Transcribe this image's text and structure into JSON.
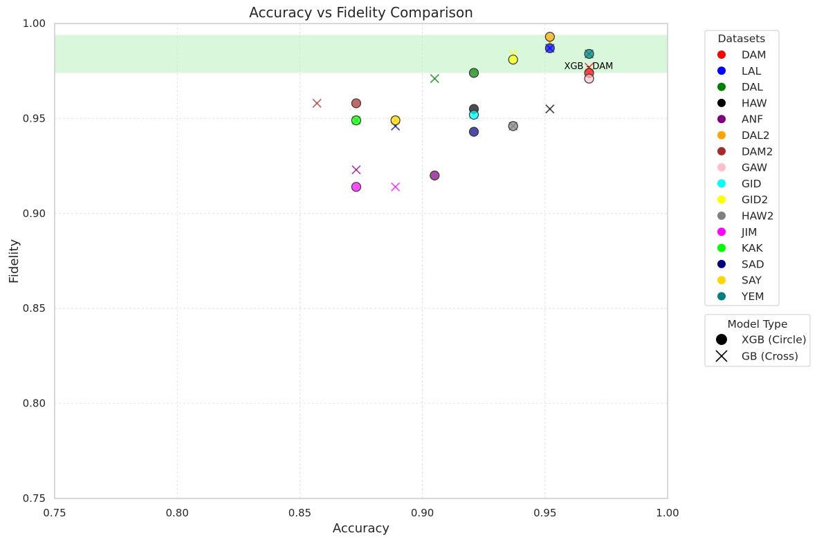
{
  "chart_data": {
    "type": "scatter",
    "title": "Accuracy vs Fidelity Comparison",
    "xlabel": "Accuracy",
    "ylabel": "Fidelity",
    "xlim": [
      0.75,
      1.0
    ],
    "ylim": [
      0.75,
      1.0
    ],
    "xticks": [
      "0.75",
      "0.80",
      "0.85",
      "0.90",
      "0.95",
      "1.00"
    ],
    "yticks": [
      "0.75",
      "0.80",
      "0.85",
      "0.90",
      "0.95",
      "1.00"
    ],
    "grid": true,
    "highlight_band": {
      "y0": 0.974,
      "y1": 0.994,
      "color": "#b9f0bd"
    },
    "annotation": {
      "text": "XGB - DAM",
      "x": 0.968,
      "y": 0.98
    },
    "datasets_legend": {
      "title": "Datasets",
      "placement": "right-top",
      "entries": [
        {
          "name": "DAM",
          "color": "#ff0000"
        },
        {
          "name": "LAL",
          "color": "#0000ff"
        },
        {
          "name": "DAL",
          "color": "#008000"
        },
        {
          "name": "HAW",
          "color": "#000000"
        },
        {
          "name": "ANF",
          "color": "#800080"
        },
        {
          "name": "DAL2",
          "color": "#ffa500"
        },
        {
          "name": "DAM2",
          "color": "#a52a2a"
        },
        {
          "name": "GAW",
          "color": "#ffc0cb"
        },
        {
          "name": "GID",
          "color": "#00ffff"
        },
        {
          "name": "GID2",
          "color": "#ffff00"
        },
        {
          "name": "HAW2",
          "color": "#808080"
        },
        {
          "name": "JIM",
          "color": "#ff00ff"
        },
        {
          "name": "KAK",
          "color": "#00ff00"
        },
        {
          "name": "SAD",
          "color": "#000080"
        },
        {
          "name": "SAY",
          "color": "#ffd700"
        },
        {
          "name": "YEM",
          "color": "#008080"
        }
      ]
    },
    "model_legend": {
      "title": "Model Type",
      "placement": "right-middle",
      "entries": [
        {
          "name": "XGB (Circle)",
          "marker": "circle"
        },
        {
          "name": "GB (Cross)",
          "marker": "cross"
        }
      ]
    },
    "series": [
      {
        "dataset": "DAM",
        "color": "#ff0000",
        "xgb": [
          0.968,
          0.974
        ],
        "gb": [
          0.968,
          0.977
        ]
      },
      {
        "dataset": "LAL",
        "color": "#0000ff",
        "xgb": [
          0.952,
          0.987
        ],
        "gb": [
          0.952,
          0.987
        ]
      },
      {
        "dataset": "DAL",
        "color": "#008000",
        "xgb": [
          0.921,
          0.974
        ],
        "gb": [
          0.905,
          0.971
        ]
      },
      {
        "dataset": "HAW",
        "color": "#000000",
        "xgb": [
          0.921,
          0.955
        ],
        "gb": [
          0.952,
          0.955
        ]
      },
      {
        "dataset": "ANF",
        "color": "#800080",
        "xgb": [
          0.905,
          0.92
        ],
        "gb": [
          0.873,
          0.923
        ]
      },
      {
        "dataset": "DAL2",
        "color": "#ffa500",
        "xgb": [
          0.952,
          0.993
        ],
        "gb": [
          0.952,
          0.99
        ]
      },
      {
        "dataset": "DAM2",
        "color": "#a52a2a",
        "xgb": [
          0.873,
          0.958
        ],
        "gb": [
          0.857,
          0.958
        ]
      },
      {
        "dataset": "GAW",
        "color": "#ffc0cb",
        "xgb": [
          0.968,
          0.971
        ],
        "gb": [
          0.968,
          0.974
        ]
      },
      {
        "dataset": "GID",
        "color": "#00ffff",
        "xgb": [
          0.921,
          0.952
        ],
        "gb": [
          0.921,
          0.952
        ]
      },
      {
        "dataset": "GID2",
        "color": "#ffff00",
        "xgb": [
          0.937,
          0.981
        ],
        "gb": [
          0.937,
          0.984
        ]
      },
      {
        "dataset": "HAW2",
        "color": "#808080",
        "xgb": [
          0.937,
          0.946
        ],
        "gb": [
          0.937,
          0.946
        ]
      },
      {
        "dataset": "JIM",
        "color": "#ff00ff",
        "xgb": [
          0.873,
          0.914
        ],
        "gb": [
          0.889,
          0.914
        ]
      },
      {
        "dataset": "KAK",
        "color": "#00ff00",
        "xgb": [
          0.873,
          0.949
        ],
        "gb": [
          0.873,
          0.949
        ]
      },
      {
        "dataset": "SAD",
        "color": "#000080",
        "xgb": [
          0.921,
          0.943
        ],
        "gb": [
          0.889,
          0.946
        ]
      },
      {
        "dataset": "SAY",
        "color": "#ffd700",
        "xgb": [
          0.889,
          0.949
        ],
        "gb": [
          0.889,
          0.949
        ]
      },
      {
        "dataset": "YEM",
        "color": "#008080",
        "xgb": [
          0.968,
          0.984
        ],
        "gb": [
          0.968,
          0.984
        ]
      }
    ]
  }
}
